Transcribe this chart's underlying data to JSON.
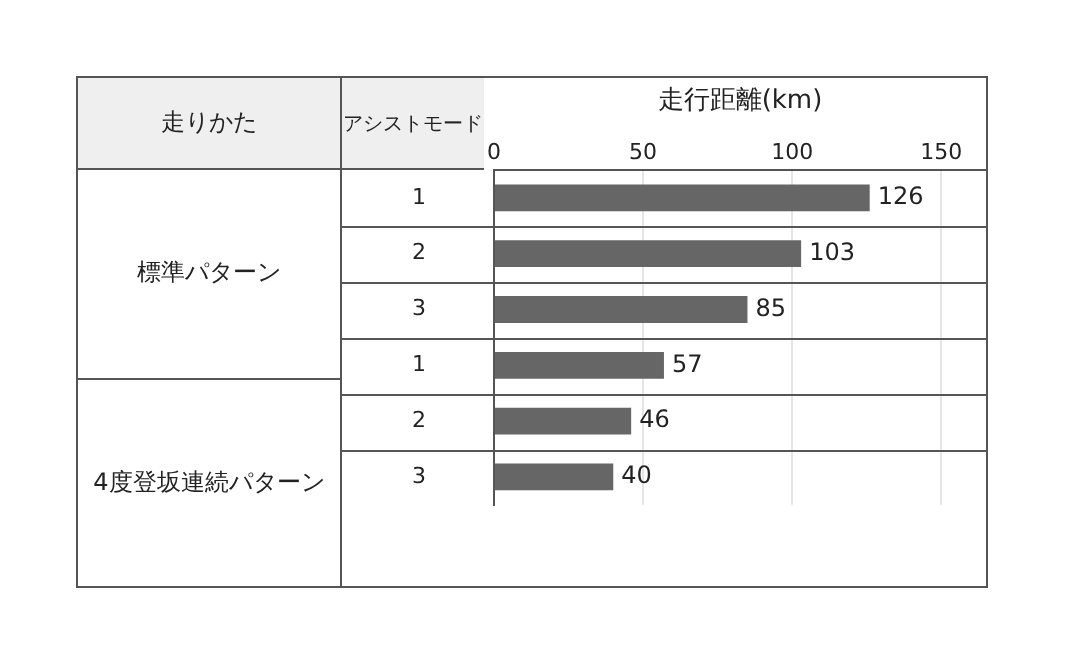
{
  "chart_data": {
    "type": "bar",
    "orientation": "horizontal",
    "xlabel": "走行距離(km)",
    "ylabel": "アシストモード",
    "categories": [
      "1",
      "2",
      "3",
      "1",
      "2",
      "3"
    ],
    "values": [
      126,
      103,
      85,
      57,
      46,
      40
    ],
    "color": "#666666",
    "xlim": [
      0,
      165
    ],
    "xticks": [
      0,
      50,
      100,
      150
    ],
    "grid": "x",
    "data_labels": true,
    "legend": false,
    "annotations": [
      "走りかた",
      "標準パターン",
      "4度登坂連続パターン"
    ]
  }
}
